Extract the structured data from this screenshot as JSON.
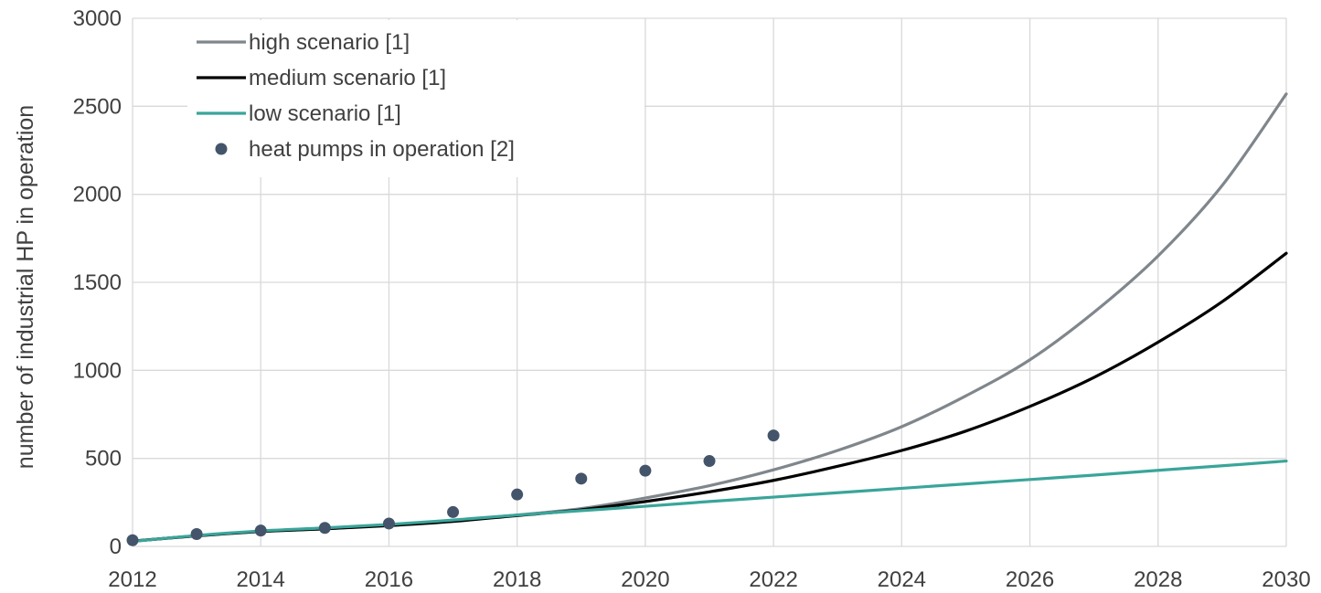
{
  "chart_data": {
    "type": "line",
    "title": "",
    "xlabel": "",
    "ylabel": "number of industrial HP in operation",
    "xlim": [
      2012,
      2030
    ],
    "ylim": [
      0,
      3000
    ],
    "x_ticks": [
      2012,
      2014,
      2016,
      2018,
      2020,
      2022,
      2024,
      2026,
      2028,
      2030
    ],
    "y_ticks": [
      0,
      500,
      1000,
      1500,
      2000,
      2500,
      3000
    ],
    "grid": true,
    "legend_position": "top-left",
    "series": [
      {
        "name": "high scenario [1]",
        "kind": "line",
        "color": "#7f868c",
        "x": [
          2012,
          2013,
          2014,
          2015,
          2016,
          2017,
          2018,
          2019,
          2020,
          2021,
          2022,
          2023,
          2024,
          2025,
          2026,
          2027,
          2028,
          2029,
          2030
        ],
        "y": [
          30,
          60,
          85,
          100,
          120,
          145,
          178,
          215,
          275,
          345,
          435,
          545,
          680,
          855,
          1060,
          1330,
          1650,
          2050,
          2570
        ]
      },
      {
        "name": "medium scenario [1]",
        "kind": "line",
        "color": "#000000",
        "x": [
          2012,
          2013,
          2014,
          2015,
          2016,
          2017,
          2018,
          2019,
          2020,
          2021,
          2022,
          2023,
          2024,
          2025,
          2026,
          2027,
          2028,
          2029,
          2030
        ],
        "y": [
          30,
          60,
          85,
          100,
          118,
          142,
          175,
          208,
          255,
          310,
          375,
          455,
          545,
          655,
          795,
          960,
          1160,
          1390,
          1665
        ]
      },
      {
        "name": "low scenario [1]",
        "kind": "line",
        "color": "#3aa59a",
        "x": [
          2012,
          2013,
          2014,
          2015,
          2016,
          2017,
          2018,
          2019,
          2020,
          2021,
          2022,
          2023,
          2024,
          2025,
          2026,
          2027,
          2028,
          2029,
          2030
        ],
        "y": [
          28,
          62,
          88,
          105,
          125,
          150,
          178,
          203,
          228,
          255,
          280,
          305,
          330,
          355,
          380,
          405,
          432,
          458,
          485
        ]
      },
      {
        "name": "heat pumps in operation [2]",
        "kind": "scatter",
        "color": "#44546a",
        "x": [
          2012,
          2013,
          2014,
          2015,
          2016,
          2017,
          2018,
          2019,
          2020,
          2021,
          2022
        ],
        "y": [
          35,
          70,
          90,
          105,
          130,
          195,
          295,
          385,
          430,
          485,
          630
        ]
      }
    ]
  }
}
